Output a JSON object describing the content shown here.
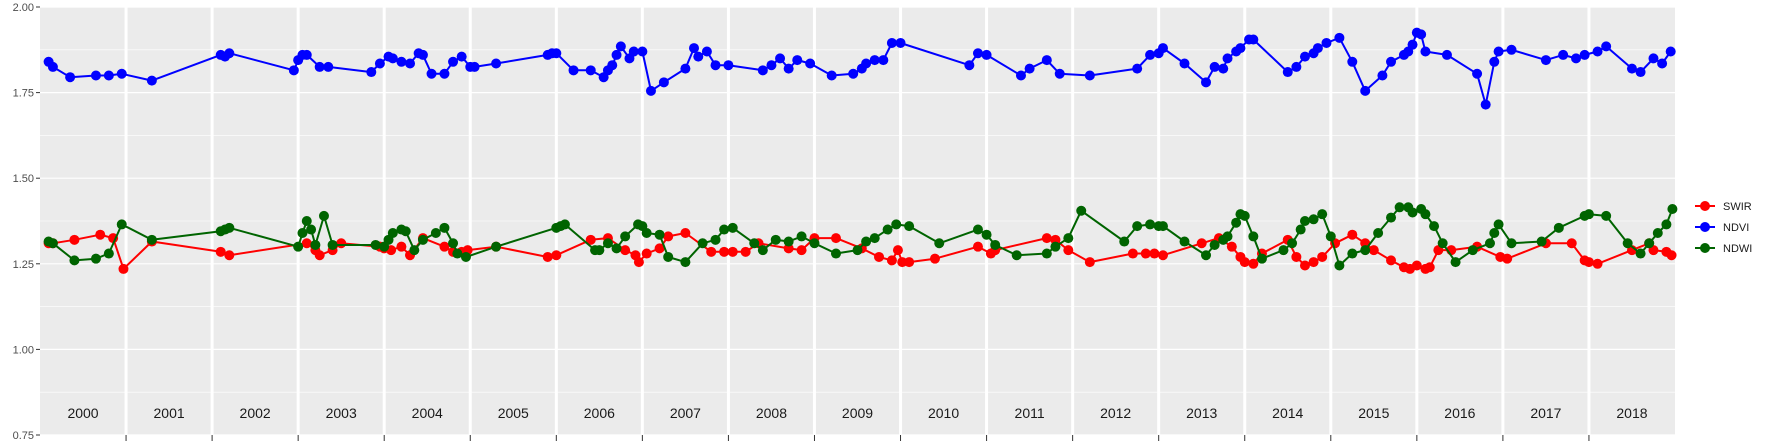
{
  "chart_data": {
    "type": "line",
    "title": "",
    "xlabel": "",
    "ylabel": "",
    "ylim": [
      0.75,
      2.0
    ],
    "xlim": [
      2000.0,
      2019.0
    ],
    "y_ticks": [
      "0.75",
      "1.00",
      "1.25",
      "1.50",
      "1.75",
      "2.00"
    ],
    "year_labels": [
      "2000",
      "2001",
      "2002",
      "2003",
      "2004",
      "2005",
      "2006",
      "2007",
      "2008",
      "2009",
      "2010",
      "2011",
      "2012",
      "2013",
      "2014",
      "2015",
      "2016",
      "2017",
      "2018"
    ],
    "grid": true,
    "legend_position": "right",
    "series": [
      {
        "name": "SWIR",
        "color": "#ff0000",
        "x": [
          2000.1,
          2000.15,
          2000.4,
          2000.7,
          2000.85,
          2000.97,
          2001.3,
          2002.1,
          2002.2,
          2003.1,
          2003.2,
          2003.25,
          2003.4,
          2003.5,
          2003.95,
          2004.0,
          2004.08,
          2004.2,
          2004.3,
          2004.45,
          2004.7,
          2004.8,
          2004.9,
          2004.97,
          2005.3,
          2005.9,
          2006.0,
          2006.4,
          2006.6,
          2006.8,
          2006.92,
          2006.96,
          2007.05,
          2007.2,
          2007.3,
          2007.5,
          2007.8,
          2007.95,
          2008.05,
          2008.2,
          2008.35,
          2008.7,
          2008.85,
          2009.0,
          2009.25,
          2009.55,
          2009.75,
          2009.9,
          2009.97,
          2010.02,
          2010.1,
          2010.4,
          2010.9,
          2011.05,
          2011.1,
          2011.7,
          2011.8,
          2011.95,
          2012.2,
          2012.7,
          2012.85,
          2012.95,
          2013.05,
          2013.5,
          2013.7,
          2013.85,
          2013.95,
          2014.0,
          2014.1,
          2014.2,
          2014.5,
          2014.6,
          2014.7,
          2014.8,
          2014.9,
          2015.05,
          2015.25,
          2015.4,
          2015.5,
          2015.7,
          2015.85,
          2015.92,
          2016.0,
          2016.1,
          2016.15,
          2016.25,
          2016.4,
          2016.7,
          2016.97,
          2017.05,
          2017.5,
          2017.8,
          2017.95,
          2018.0,
          2018.1,
          2018.5,
          2018.7,
          2018.75,
          2018.9,
          2018.96
        ],
        "y": [
          1.31,
          1.31,
          1.32,
          1.335,
          1.325,
          1.235,
          1.315,
          1.285,
          1.275,
          1.31,
          1.29,
          1.275,
          1.29,
          1.31,
          1.3,
          1.295,
          1.29,
          1.3,
          1.275,
          1.325,
          1.3,
          1.285,
          1.285,
          1.29,
          1.3,
          1.27,
          1.275,
          1.32,
          1.325,
          1.29,
          1.275,
          1.255,
          1.28,
          1.295,
          1.33,
          1.34,
          1.285,
          1.285,
          1.285,
          1.285,
          1.31,
          1.295,
          1.29,
          1.325,
          1.325,
          1.295,
          1.27,
          1.26,
          1.29,
          1.255,
          1.255,
          1.265,
          1.3,
          1.28,
          1.29,
          1.325,
          1.32,
          1.29,
          1.255,
          1.28,
          1.28,
          1.28,
          1.275,
          1.31,
          1.325,
          1.3,
          1.27,
          1.255,
          1.25,
          1.28,
          1.32,
          1.27,
          1.245,
          1.255,
          1.27,
          1.31,
          1.335,
          1.31,
          1.29,
          1.26,
          1.24,
          1.235,
          1.245,
          1.235,
          1.24,
          1.29,
          1.29,
          1.3,
          1.27,
          1.265,
          1.31,
          1.31,
          1.26,
          1.255,
          1.25,
          1.29,
          1.31,
          1.29,
          1.285,
          1.275
        ]
      },
      {
        "name": "NDVI",
        "color": "#0000ff",
        "x": [
          2000.1,
          2000.15,
          2000.35,
          2000.65,
          2000.8,
          2000.95,
          2001.3,
          2002.1,
          2002.15,
          2002.2,
          2002.95,
          2003.0,
          2003.05,
          2003.1,
          2003.25,
          2003.35,
          2003.85,
          2003.95,
          2004.05,
          2004.1,
          2004.2,
          2004.3,
          2004.4,
          2004.45,
          2004.55,
          2004.7,
          2004.8,
          2004.9,
          2005.0,
          2005.05,
          2005.3,
          2005.9,
          2005.95,
          2006.0,
          2006.2,
          2006.4,
          2006.55,
          2006.6,
          2006.65,
          2006.7,
          2006.75,
          2006.85,
          2006.9,
          2007.0,
          2007.1,
          2007.25,
          2007.5,
          2007.6,
          2007.65,
          2007.75,
          2007.85,
          2008.0,
          2008.4,
          2008.5,
          2008.6,
          2008.7,
          2008.8,
          2008.95,
          2009.2,
          2009.45,
          2009.55,
          2009.6,
          2009.7,
          2009.8,
          2009.9,
          2010.0,
          2010.8,
          2010.9,
          2011.0,
          2011.4,
          2011.5,
          2011.7,
          2011.85,
          2012.2,
          2012.75,
          2012.9,
          2013.0,
          2013.05,
          2013.3,
          2013.55,
          2013.65,
          2013.75,
          2013.8,
          2013.9,
          2013.95,
          2014.05,
          2014.1,
          2014.5,
          2014.6,
          2014.7,
          2014.8,
          2014.85,
          2014.95,
          2015.1,
          2015.25,
          2015.4,
          2015.6,
          2015.7,
          2015.85,
          2015.9,
          2015.95,
          2016.0,
          2016.05,
          2016.1,
          2016.35,
          2016.7,
          2016.8,
          2016.9,
          2016.95,
          2017.1,
          2017.5,
          2017.7,
          2017.85,
          2017.95,
          2018.1,
          2018.2,
          2018.5,
          2018.6,
          2018.75,
          2018.85,
          2018.95
        ],
        "y": [
          1.84,
          1.825,
          1.795,
          1.8,
          1.8,
          1.805,
          1.785,
          1.86,
          1.855,
          1.865,
          1.815,
          1.845,
          1.86,
          1.86,
          1.825,
          1.825,
          1.81,
          1.835,
          1.855,
          1.85,
          1.84,
          1.835,
          1.865,
          1.86,
          1.805,
          1.805,
          1.84,
          1.855,
          1.825,
          1.825,
          1.835,
          1.86,
          1.865,
          1.865,
          1.815,
          1.815,
          1.795,
          1.815,
          1.83,
          1.86,
          1.885,
          1.85,
          1.87,
          1.87,
          1.755,
          1.78,
          1.82,
          1.88,
          1.855,
          1.87,
          1.83,
          1.83,
          1.815,
          1.83,
          1.85,
          1.82,
          1.845,
          1.835,
          1.8,
          1.805,
          1.82,
          1.835,
          1.845,
          1.845,
          1.895,
          1.895,
          1.83,
          1.865,
          1.86,
          1.8,
          1.82,
          1.845,
          1.805,
          1.8,
          1.82,
          1.86,
          1.865,
          1.88,
          1.835,
          1.78,
          1.825,
          1.82,
          1.85,
          1.87,
          1.88,
          1.905,
          1.905,
          1.81,
          1.825,
          1.855,
          1.865,
          1.88,
          1.895,
          1.91,
          1.84,
          1.755,
          1.8,
          1.84,
          1.86,
          1.87,
          1.89,
          1.925,
          1.92,
          1.87,
          1.86,
          1.805,
          1.715,
          1.84,
          1.87,
          1.875,
          1.845,
          1.86,
          1.85,
          1.86,
          1.87,
          1.885,
          1.82,
          1.81,
          1.85,
          1.835,
          1.87
        ]
      },
      {
        "name": "NDWI",
        "color": "#006400",
        "x": [
          2000.1,
          2000.15,
          2000.4,
          2000.65,
          2000.8,
          2000.95,
          2001.3,
          2002.1,
          2002.15,
          2002.2,
          2003.0,
          2003.05,
          2003.1,
          2003.15,
          2003.2,
          2003.3,
          2003.4,
          2003.9,
          2004.0,
          2004.05,
          2004.1,
          2004.2,
          2004.25,
          2004.35,
          2004.45,
          2004.6,
          2004.7,
          2004.8,
          2004.85,
          2004.95,
          2005.3,
          2006.0,
          2006.05,
          2006.1,
          2006.45,
          2006.5,
          2006.6,
          2006.7,
          2006.8,
          2006.95,
          2007.0,
          2007.05,
          2007.2,
          2007.3,
          2007.5,
          2007.7,
          2007.85,
          2007.95,
          2008.05,
          2008.3,
          2008.4,
          2008.55,
          2008.7,
          2008.85,
          2009.0,
          2009.25,
          2009.5,
          2009.6,
          2009.7,
          2009.85,
          2009.95,
          2010.1,
          2010.45,
          2010.9,
          2011.0,
          2011.1,
          2011.35,
          2011.7,
          2011.8,
          2011.95,
          2012.1,
          2012.6,
          2012.75,
          2012.9,
          2013.0,
          2013.05,
          2013.3,
          2013.55,
          2013.65,
          2013.75,
          2013.8,
          2013.9,
          2013.95,
          2014.0,
          2014.1,
          2014.2,
          2014.45,
          2014.55,
          2014.65,
          2014.7,
          2014.8,
          2014.9,
          2015.0,
          2015.1,
          2015.25,
          2015.4,
          2015.55,
          2015.7,
          2015.8,
          2015.9,
          2015.95,
          2016.05,
          2016.1,
          2016.2,
          2016.3,
          2016.45,
          2016.65,
          2016.85,
          2016.9,
          2016.95,
          2017.1,
          2017.45,
          2017.65,
          2017.95,
          2018.0,
          2018.2,
          2018.45,
          2018.6,
          2018.7,
          2018.8,
          2018.9,
          2018.97
        ],
        "y": [
          1.315,
          1.31,
          1.26,
          1.265,
          1.28,
          1.365,
          1.32,
          1.345,
          1.35,
          1.355,
          1.3,
          1.34,
          1.375,
          1.35,
          1.305,
          1.39,
          1.305,
          1.305,
          1.3,
          1.32,
          1.34,
          1.35,
          1.345,
          1.29,
          1.32,
          1.34,
          1.355,
          1.31,
          1.28,
          1.27,
          1.3,
          1.355,
          1.36,
          1.365,
          1.29,
          1.29,
          1.31,
          1.295,
          1.33,
          1.365,
          1.36,
          1.34,
          1.335,
          1.27,
          1.255,
          1.31,
          1.32,
          1.35,
          1.355,
          1.31,
          1.29,
          1.32,
          1.315,
          1.33,
          1.31,
          1.28,
          1.29,
          1.315,
          1.325,
          1.35,
          1.365,
          1.36,
          1.31,
          1.35,
          1.335,
          1.305,
          1.275,
          1.28,
          1.3,
          1.325,
          1.405,
          1.315,
          1.36,
          1.365,
          1.36,
          1.36,
          1.315,
          1.275,
          1.305,
          1.32,
          1.33,
          1.37,
          1.395,
          1.39,
          1.33,
          1.265,
          1.29,
          1.31,
          1.35,
          1.375,
          1.38,
          1.395,
          1.33,
          1.245,
          1.28,
          1.29,
          1.34,
          1.385,
          1.415,
          1.415,
          1.4,
          1.41,
          1.395,
          1.36,
          1.31,
          1.255,
          1.29,
          1.31,
          1.34,
          1.365,
          1.31,
          1.315,
          1.355,
          1.39,
          1.395,
          1.39,
          1.31,
          1.28,
          1.31,
          1.34,
          1.365,
          1.41
        ]
      }
    ]
  }
}
